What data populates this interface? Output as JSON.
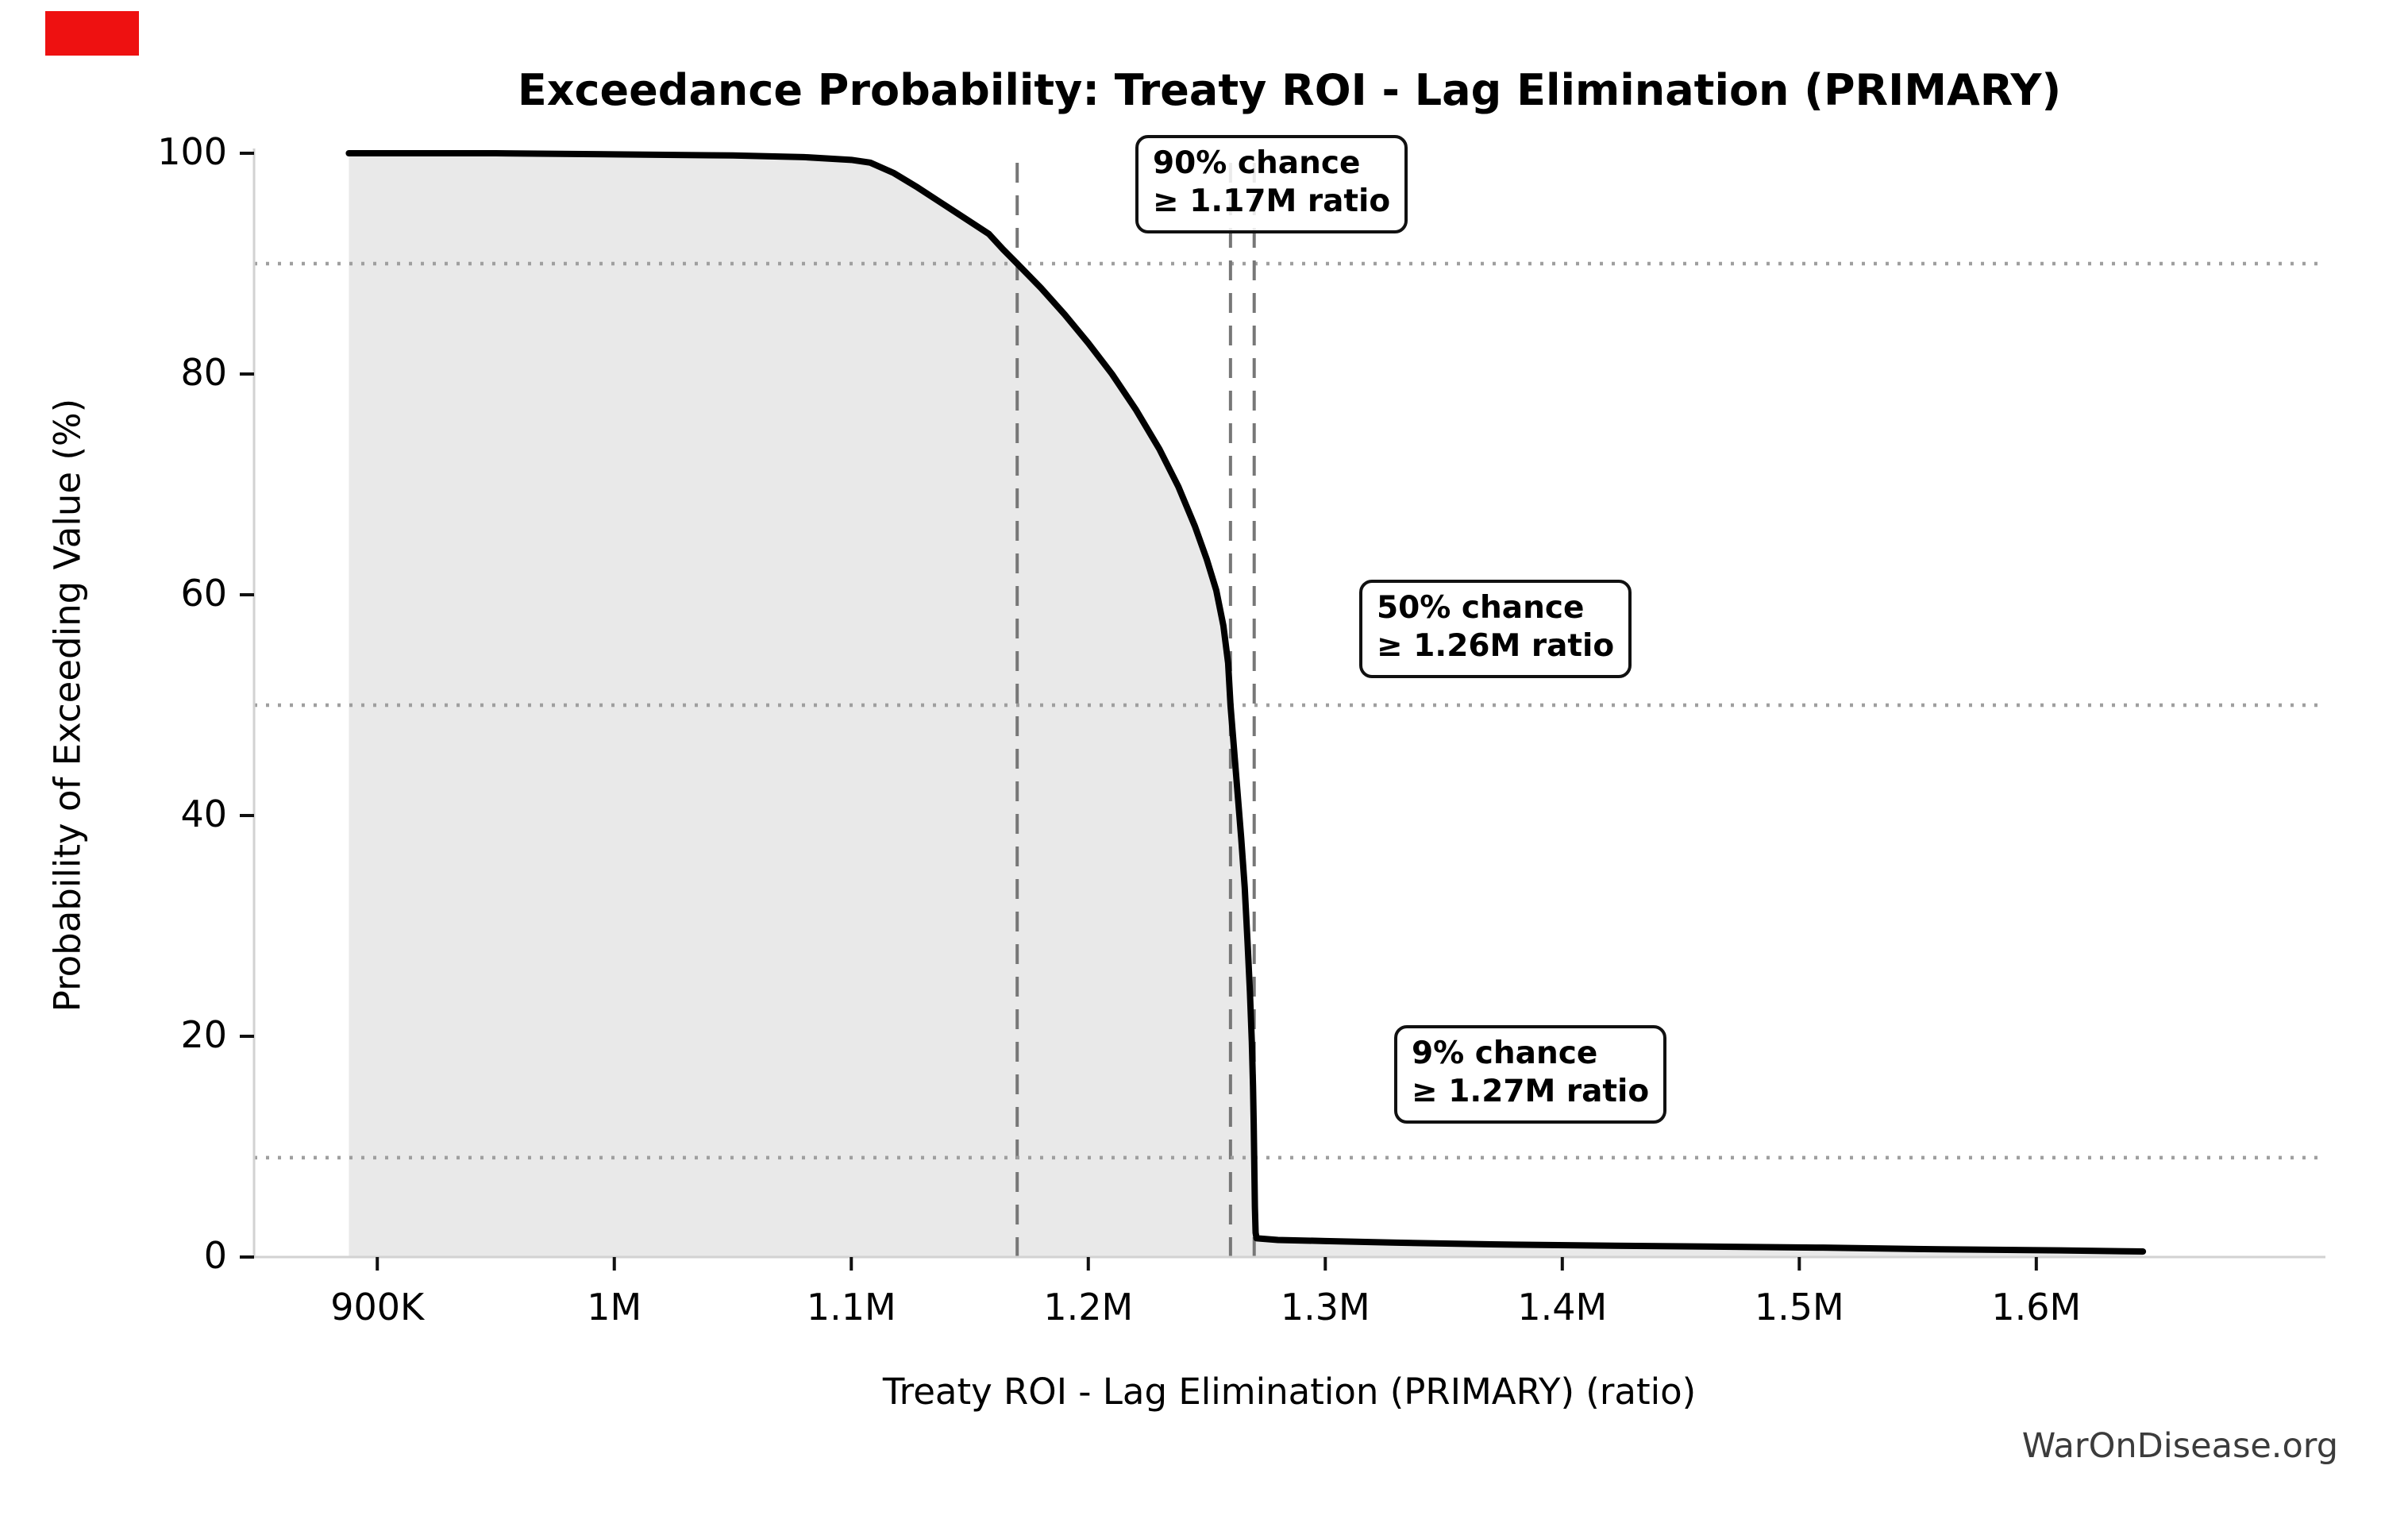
{
  "page": {
    "watermark": "WarOnDisease.org",
    "marker_color": "#ee1111"
  },
  "chart_data": {
    "type": "line",
    "subtype": "exceedance-probability-curve",
    "title": "Exceedance Probability: Treaty ROI - Lag Elimination (PRIMARY)",
    "xlabel": "Treaty ROI - Lag Elimination (PRIMARY) (ratio)",
    "ylabel": "Probability of Exceeding Value (%)",
    "xlim": [
      848000,
      1722000
    ],
    "ylim": [
      0,
      100
    ],
    "grid": "dotted horizontal guides at threshold probabilities; dashed vertical guides at threshold values",
    "legend": "none",
    "x_ticks": [
      {
        "value": 900000,
        "label": "900K"
      },
      {
        "value": 1000000,
        "label": "1M"
      },
      {
        "value": 1100000,
        "label": "1.1M"
      },
      {
        "value": 1200000,
        "label": "1.2M"
      },
      {
        "value": 1300000,
        "label": "1.3M"
      },
      {
        "value": 1400000,
        "label": "1.4M"
      },
      {
        "value": 1500000,
        "label": "1.5M"
      },
      {
        "value": 1600000,
        "label": "1.6M"
      }
    ],
    "y_ticks": [
      {
        "value": 0,
        "label": "0"
      },
      {
        "value": 20,
        "label": "20"
      },
      {
        "value": 40,
        "label": "40"
      },
      {
        "value": 60,
        "label": "60"
      },
      {
        "value": 80,
        "label": "80"
      },
      {
        "value": 100,
        "label": "100"
      }
    ],
    "thresholds": [
      {
        "probability_pct": 90,
        "value": 1170000,
        "label_line1": "90% chance",
        "label_line2": "≥ 1.17M ratio"
      },
      {
        "probability_pct": 50,
        "value": 1260000,
        "label_line1": "50% chance",
        "label_line2": "≥ 1.26M ratio"
      },
      {
        "probability_pct": 9,
        "value": 1270000,
        "label_line1": "9% chance",
        "label_line2": "≥ 1.27M ratio"
      }
    ],
    "curve_points": [
      [
        888000,
        100
      ],
      [
        950000,
        100
      ],
      [
        1000000,
        99.9
      ],
      [
        1050000,
        99.8
      ],
      [
        1080000,
        99.65
      ],
      [
        1100000,
        99.4
      ],
      [
        1108000,
        99.15
      ],
      [
        1118000,
        98.2
      ],
      [
        1128000,
        96.9
      ],
      [
        1138000,
        95.5
      ],
      [
        1148000,
        94.1
      ],
      [
        1158000,
        92.7
      ],
      [
        1164000,
        91.3
      ],
      [
        1170000,
        90
      ],
      [
        1180000,
        87.8
      ],
      [
        1190000,
        85.4
      ],
      [
        1200000,
        82.8
      ],
      [
        1210000,
        80
      ],
      [
        1220000,
        76.8
      ],
      [
        1230000,
        73.2
      ],
      [
        1238000,
        69.8
      ],
      [
        1245000,
        66.2
      ],
      [
        1250000,
        63.2
      ],
      [
        1254000,
        60.4
      ],
      [
        1257000,
        57.2
      ],
      [
        1259000,
        53.8
      ],
      [
        1260000,
        50
      ],
      [
        1261500,
        46
      ],
      [
        1263000,
        42
      ],
      [
        1264500,
        38
      ],
      [
        1266000,
        33.5
      ],
      [
        1267200,
        28.5
      ],
      [
        1268200,
        24
      ],
      [
        1269000,
        19.5
      ],
      [
        1269500,
        15.5
      ],
      [
        1269800,
        12
      ],
      [
        1270000,
        9
      ],
      [
        1270300,
        4.5
      ],
      [
        1270600,
        2.2
      ],
      [
        1271000,
        1.7
      ],
      [
        1280000,
        1.55
      ],
      [
        1300000,
        1.45
      ],
      [
        1330000,
        1.3
      ],
      [
        1370000,
        1.15
      ],
      [
        1410000,
        1.05
      ],
      [
        1460000,
        0.95
      ],
      [
        1510000,
        0.85
      ],
      [
        1560000,
        0.7
      ],
      [
        1610000,
        0.6
      ],
      [
        1645000,
        0.5
      ]
    ],
    "colors": {
      "curve": "#000000",
      "fill": "#e9e9e9",
      "dashed_guide": "#777777",
      "dotted_guide": "#9f9f9f",
      "spine": "#d2d2d2",
      "tick": "#111111",
      "watermark": "#3c3c3c"
    }
  }
}
